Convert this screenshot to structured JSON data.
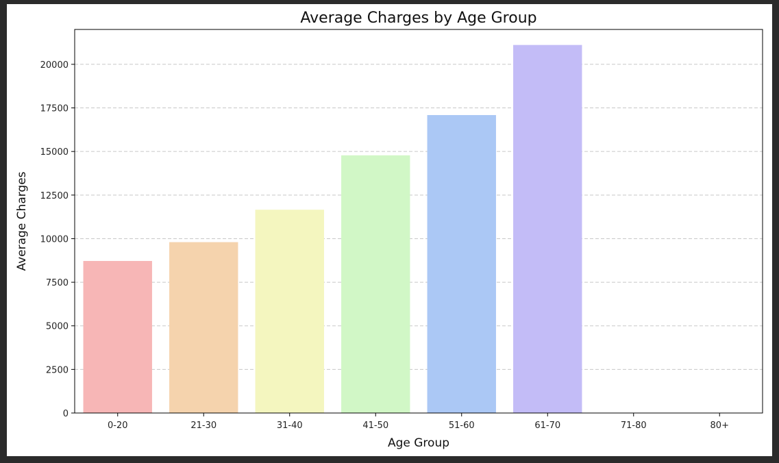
{
  "chart_data": {
    "type": "bar",
    "title": "Average Charges by Age Group",
    "xlabel": "Age Group",
    "ylabel": "Average Charges",
    "categories": [
      "0-20",
      "21-30",
      "31-40",
      "41-50",
      "51-60",
      "61-70",
      "71-80",
      "80+"
    ],
    "values": [
      8720,
      9800,
      11660,
      14780,
      17090,
      21110,
      0,
      0
    ],
    "ylim": [
      0,
      22000
    ],
    "yticks": [
      0,
      2500,
      5000,
      7500,
      10000,
      12500,
      15000,
      17500,
      20000
    ],
    "grid": "y-dashed",
    "colors": [
      "#f7b6b6",
      "#f5d3ad",
      "#f4f6bf",
      "#d1f7c6",
      "#abc8f5",
      "#c3bcf7",
      "#dcc6f5",
      "#f5bfe5"
    ]
  }
}
